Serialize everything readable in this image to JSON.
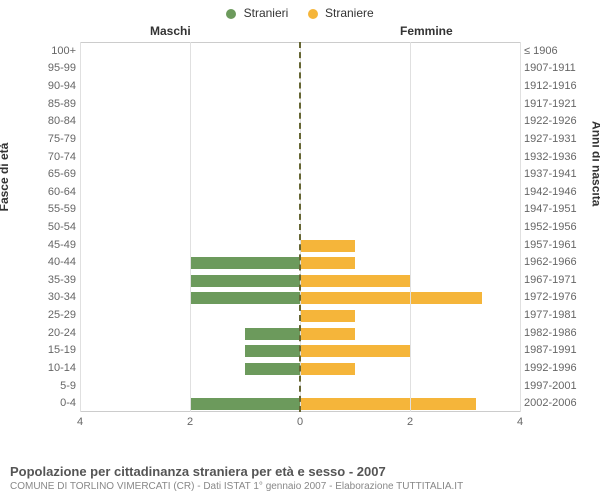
{
  "legend": {
    "series1": {
      "label": "Stranieri",
      "color": "#6c9a5c"
    },
    "series2": {
      "label": "Straniere",
      "color": "#f5b53a"
    }
  },
  "headers": {
    "left": "Maschi",
    "right": "Femmine"
  },
  "axis_titles": {
    "left": "Fasce di età",
    "right": "Anni di nascita"
  },
  "footer": {
    "title": "Popolazione per cittadinanza straniera per età e sesso - 2007",
    "subtitle": "COMUNE DI TORLINO VIMERCATI (CR) - Dati ISTAT 1° gennaio 2007 - Elaborazione TUTTITALIA.IT"
  },
  "chart": {
    "type": "population-pyramid",
    "xlim": 4,
    "xticks": [
      0,
      2,
      4
    ],
    "left_color": "#6c9a5c",
    "right_color": "#f5b53a",
    "grid_color": "#e0e0e0",
    "center_line_color": "#666633",
    "background_color": "#ffffff",
    "label_fontsize": 11,
    "rows": [
      {
        "age": "100+",
        "birth": "≤ 1906",
        "m": 0,
        "f": 0
      },
      {
        "age": "95-99",
        "birth": "1907-1911",
        "m": 0,
        "f": 0
      },
      {
        "age": "90-94",
        "birth": "1912-1916",
        "m": 0,
        "f": 0
      },
      {
        "age": "85-89",
        "birth": "1917-1921",
        "m": 0,
        "f": 0
      },
      {
        "age": "80-84",
        "birth": "1922-1926",
        "m": 0,
        "f": 0
      },
      {
        "age": "75-79",
        "birth": "1927-1931",
        "m": 0,
        "f": 0
      },
      {
        "age": "70-74",
        "birth": "1932-1936",
        "m": 0,
        "f": 0
      },
      {
        "age": "65-69",
        "birth": "1937-1941",
        "m": 0,
        "f": 0
      },
      {
        "age": "60-64",
        "birth": "1942-1946",
        "m": 0,
        "f": 0
      },
      {
        "age": "55-59",
        "birth": "1947-1951",
        "m": 0,
        "f": 0
      },
      {
        "age": "50-54",
        "birth": "1952-1956",
        "m": 0,
        "f": 0
      },
      {
        "age": "45-49",
        "birth": "1957-1961",
        "m": 0,
        "f": 1
      },
      {
        "age": "40-44",
        "birth": "1962-1966",
        "m": 2,
        "f": 1
      },
      {
        "age": "35-39",
        "birth": "1967-1971",
        "m": 2,
        "f": 2
      },
      {
        "age": "30-34",
        "birth": "1972-1976",
        "m": 2,
        "f": 3.3
      },
      {
        "age": "25-29",
        "birth": "1977-1981",
        "m": 0,
        "f": 1
      },
      {
        "age": "20-24",
        "birth": "1982-1986",
        "m": 1,
        "f": 1
      },
      {
        "age": "15-19",
        "birth": "1987-1991",
        "m": 1,
        "f": 2
      },
      {
        "age": "10-14",
        "birth": "1992-1996",
        "m": 1,
        "f": 1
      },
      {
        "age": "5-9",
        "birth": "1997-2001",
        "m": 0,
        "f": 0
      },
      {
        "age": "0-4",
        "birth": "2002-2006",
        "m": 2,
        "f": 3.2
      }
    ]
  }
}
